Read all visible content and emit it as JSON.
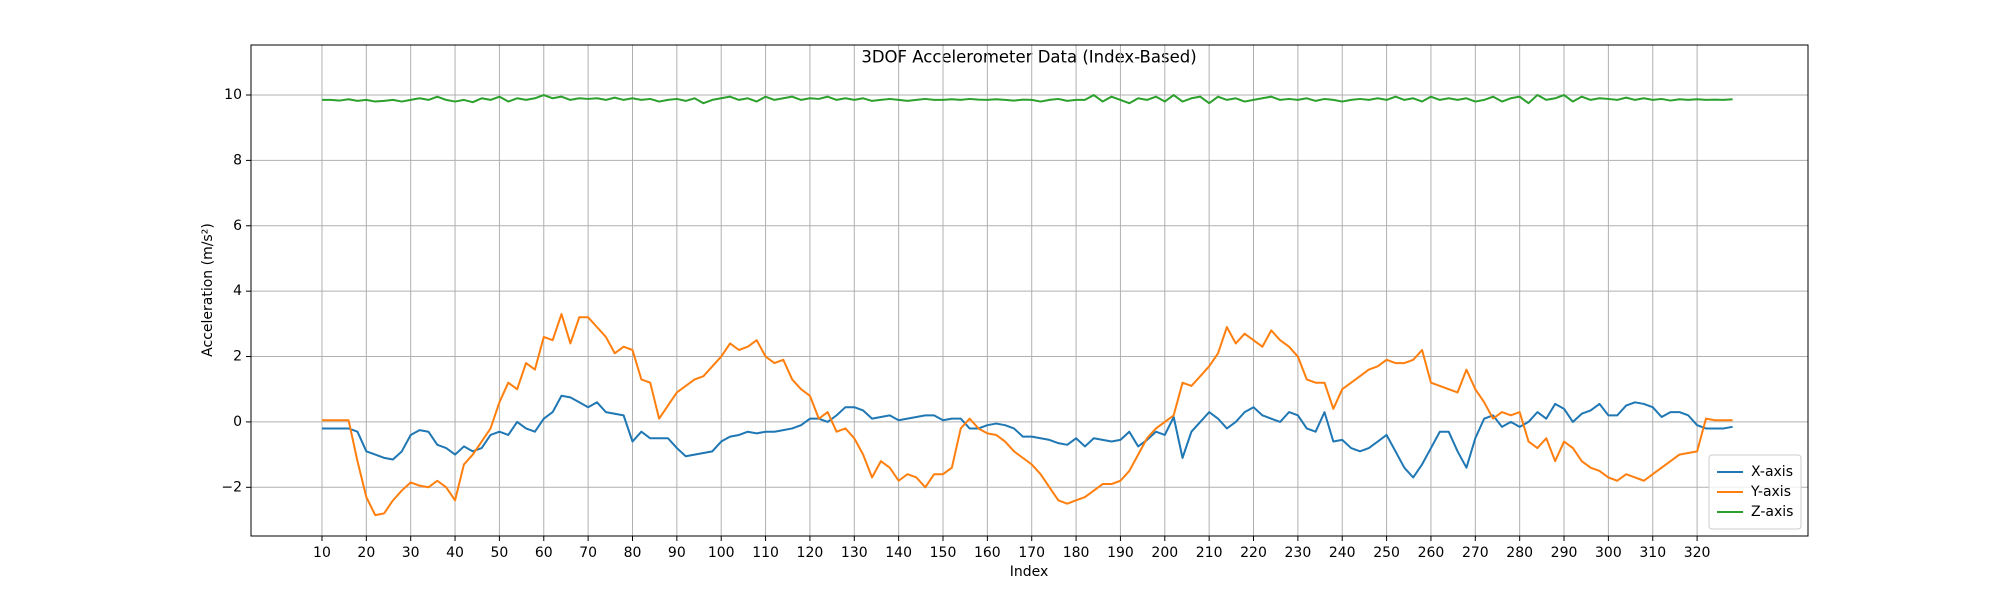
{
  "chart_data": {
    "type": "line",
    "title": "3DOF Accelerometer Data (Index-Based)",
    "x_label": "Index",
    "y_label": "Acceleration (m/s²)",
    "x": [
      10,
      12,
      14,
      16,
      18,
      20,
      22,
      24,
      26,
      28,
      30,
      32,
      34,
      36,
      38,
      40,
      42,
      44,
      46,
      48,
      50,
      52,
      54,
      56,
      58,
      60,
      62,
      64,
      66,
      68,
      70,
      72,
      74,
      76,
      78,
      80,
      82,
      84,
      86,
      88,
      90,
      92,
      94,
      96,
      98,
      100,
      102,
      104,
      106,
      108,
      110,
      112,
      114,
      116,
      118,
      120,
      122,
      124,
      126,
      128,
      130,
      132,
      134,
      136,
      138,
      140,
      142,
      144,
      146,
      148,
      150,
      152,
      154,
      156,
      158,
      160,
      162,
      164,
      166,
      168,
      170,
      172,
      174,
      176,
      178,
      180,
      182,
      184,
      186,
      188,
      190,
      192,
      194,
      196,
      198,
      200,
      202,
      204,
      206,
      208,
      210,
      212,
      214,
      216,
      218,
      220,
      222,
      224,
      226,
      228,
      230,
      232,
      234,
      236,
      238,
      240,
      242,
      244,
      246,
      248,
      250,
      252,
      254,
      256,
      258,
      260,
      262,
      264,
      266,
      268,
      270,
      272,
      274,
      276,
      278,
      280,
      282,
      284,
      286,
      288,
      290,
      292,
      294,
      296,
      298,
      300,
      302,
      304,
      306,
      308,
      310,
      312,
      314,
      316,
      318,
      320,
      322,
      324,
      326,
      328
    ],
    "series": [
      {
        "name": "X-axis",
        "color": "#1f77b4",
        "values": [
          -0.2,
          -0.2,
          -0.2,
          -0.2,
          -0.3,
          -0.9,
          -1.0,
          -1.1,
          -1.15,
          -0.9,
          -0.4,
          -0.25,
          -0.3,
          -0.7,
          -0.8,
          -1.0,
          -0.75,
          -0.9,
          -0.8,
          -0.4,
          -0.3,
          -0.4,
          0.0,
          -0.2,
          -0.3,
          0.1,
          0.3,
          0.8,
          0.75,
          0.6,
          0.45,
          0.6,
          0.3,
          0.25,
          0.2,
          -0.6,
          -0.3,
          -0.5,
          -0.5,
          -0.5,
          -0.8,
          -1.05,
          -1.0,
          -0.95,
          -0.9,
          -0.6,
          -0.45,
          -0.4,
          -0.3,
          -0.35,
          -0.3,
          -0.3,
          -0.25,
          -0.2,
          -0.1,
          0.1,
          0.1,
          0.0,
          0.2,
          0.45,
          0.45,
          0.35,
          0.1,
          0.15,
          0.2,
          0.05,
          0.1,
          0.15,
          0.2,
          0.2,
          0.05,
          0.1,
          0.1,
          -0.2,
          -0.2,
          -0.1,
          -0.05,
          -0.1,
          -0.2,
          -0.45,
          -0.45,
          -0.5,
          -0.55,
          -0.65,
          -0.7,
          -0.5,
          -0.75,
          -0.5,
          -0.55,
          -0.6,
          -0.55,
          -0.3,
          -0.75,
          -0.55,
          -0.3,
          -0.4,
          0.15,
          -1.1,
          -0.3,
          0.0,
          0.3,
          0.1,
          -0.2,
          0.0,
          0.3,
          0.45,
          0.2,
          0.1,
          0.0,
          0.3,
          0.2,
          -0.2,
          -0.3,
          0.3,
          -0.6,
          -0.55,
          -0.8,
          -0.9,
          -0.8,
          -0.6,
          -0.4,
          -0.9,
          -1.4,
          -1.7,
          -1.3,
          -0.8,
          -0.3,
          -0.3,
          -0.9,
          -1.4,
          -0.5,
          0.1,
          0.2,
          -0.15,
          0.0,
          -0.15,
          0.0,
          0.3,
          0.1,
          0.55,
          0.4,
          0.0,
          0.25,
          0.35,
          0.55,
          0.2,
          0.2,
          0.5,
          0.6,
          0.55,
          0.45,
          0.15,
          0.3,
          0.3,
          0.2,
          -0.1,
          -0.2,
          -0.2,
          -0.2,
          -0.15
        ]
      },
      {
        "name": "Y-axis",
        "color": "#ff7f0e",
        "values": [
          0.05,
          0.05,
          0.05,
          0.05,
          -1.2,
          -2.3,
          -2.85,
          -2.8,
          -2.4,
          -2.1,
          -1.85,
          -1.95,
          -2.0,
          -1.8,
          -2.0,
          -2.4,
          -1.3,
          -1.0,
          -0.6,
          -0.2,
          0.6,
          1.2,
          1.0,
          1.8,
          1.6,
          2.6,
          2.5,
          3.3,
          2.4,
          3.2,
          3.2,
          2.9,
          2.6,
          2.1,
          2.3,
          2.2,
          1.3,
          1.2,
          0.1,
          0.5,
          0.9,
          1.1,
          1.3,
          1.4,
          1.7,
          2.0,
          2.4,
          2.2,
          2.3,
          2.5,
          2.0,
          1.8,
          1.9,
          1.3,
          1.0,
          0.8,
          0.1,
          0.3,
          -0.3,
          -0.2,
          -0.5,
          -1.0,
          -1.7,
          -1.2,
          -1.4,
          -1.8,
          -1.6,
          -1.7,
          -2.0,
          -1.6,
          -1.6,
          -1.4,
          -0.2,
          0.1,
          -0.2,
          -0.35,
          -0.4,
          -0.6,
          -0.9,
          -1.1,
          -1.3,
          -1.6,
          -2.0,
          -2.4,
          -2.5,
          -2.4,
          -2.3,
          -2.1,
          -1.9,
          -1.9,
          -1.8,
          -1.5,
          -1.0,
          -0.5,
          -0.2,
          0.0,
          0.2,
          1.2,
          1.1,
          1.4,
          1.7,
          2.1,
          2.9,
          2.4,
          2.7,
          2.5,
          2.3,
          2.8,
          2.5,
          2.3,
          2.0,
          1.3,
          1.2,
          1.2,
          0.4,
          1.0,
          1.2,
          1.4,
          1.6,
          1.7,
          1.9,
          1.8,
          1.8,
          1.9,
          2.2,
          1.2,
          1.1,
          1.0,
          0.9,
          1.6,
          1.0,
          0.6,
          0.1,
          0.3,
          0.2,
          0.3,
          -0.6,
          -0.8,
          -0.5,
          -1.2,
          -0.6,
          -0.8,
          -1.2,
          -1.4,
          -1.5,
          -1.7,
          -1.8,
          -1.6,
          -1.7,
          -1.8,
          -1.6,
          -1.4,
          -1.2,
          -1.0,
          -0.95,
          -0.9,
          0.1,
          0.05,
          0.05,
          0.05
        ]
      },
      {
        "name": "Z-axis",
        "color": "#2ca02c",
        "values": [
          9.85,
          9.85,
          9.83,
          9.87,
          9.82,
          9.85,
          9.8,
          9.82,
          9.85,
          9.8,
          9.85,
          9.9,
          9.85,
          9.95,
          9.85,
          9.8,
          9.85,
          9.78,
          9.9,
          9.85,
          9.95,
          9.8,
          9.9,
          9.85,
          9.9,
          10.0,
          9.9,
          9.95,
          9.85,
          9.9,
          9.88,
          9.9,
          9.85,
          9.92,
          9.85,
          9.9,
          9.85,
          9.88,
          9.8,
          9.85,
          9.88,
          9.82,
          9.9,
          9.75,
          9.85,
          9.9,
          9.95,
          9.85,
          9.9,
          9.8,
          9.95,
          9.85,
          9.9,
          9.95,
          9.85,
          9.9,
          9.88,
          9.95,
          9.85,
          9.9,
          9.85,
          9.9,
          9.82,
          9.85,
          9.88,
          9.85,
          9.82,
          9.85,
          9.88,
          9.85,
          9.85,
          9.87,
          9.85,
          9.88,
          9.86,
          9.85,
          9.87,
          9.85,
          9.83,
          9.86,
          9.85,
          9.8,
          9.85,
          9.88,
          9.82,
          9.85,
          9.85,
          10.0,
          9.8,
          9.95,
          9.85,
          9.75,
          9.9,
          9.85,
          9.95,
          9.8,
          10.0,
          9.8,
          9.9,
          9.95,
          9.75,
          9.95,
          9.85,
          9.9,
          9.8,
          9.85,
          9.9,
          9.95,
          9.85,
          9.88,
          9.85,
          9.9,
          9.82,
          9.88,
          9.85,
          9.8,
          9.85,
          9.88,
          9.85,
          9.9,
          9.85,
          9.95,
          9.85,
          9.9,
          9.8,
          9.95,
          9.85,
          9.9,
          9.85,
          9.9,
          9.8,
          9.85,
          9.95,
          9.8,
          9.9,
          9.95,
          9.75,
          10.0,
          9.85,
          9.9,
          10.0,
          9.8,
          9.95,
          9.85,
          9.9,
          9.88,
          9.85,
          9.92,
          9.85,
          9.9,
          9.85,
          9.88,
          9.83,
          9.87,
          9.85,
          9.87,
          9.85,
          9.86,
          9.85,
          9.87
        ]
      }
    ],
    "xlim": [
      -6,
      345
    ],
    "ylim": [
      -3.49,
      11.53
    ],
    "xticks": [
      10,
      20,
      30,
      40,
      50,
      60,
      70,
      80,
      90,
      100,
      110,
      120,
      130,
      140,
      150,
      160,
      170,
      180,
      190,
      200,
      210,
      220,
      230,
      240,
      250,
      260,
      270,
      280,
      290,
      300,
      310,
      320
    ],
    "yticks": [
      {
        "value": -2,
        "label": "−2"
      },
      0,
      2,
      4,
      6,
      8,
      10
    ],
    "grid": true,
    "legend": "lower right"
  }
}
